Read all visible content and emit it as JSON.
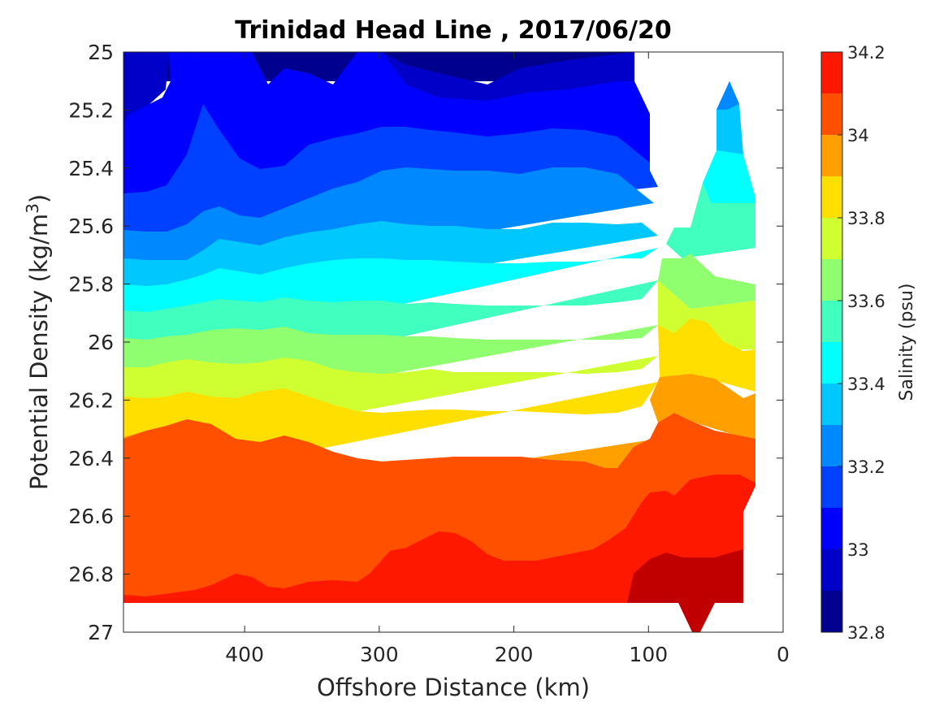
{
  "chart_data": {
    "type": "contour",
    "title": "Trinidad Head Line , 2017/06/20",
    "xlabel": "Offshore Distance (km)",
    "ylabel": "Potential Density (kg/m",
    "ylabel_sup": "3",
    "ylabel_end": ")",
    "xlim": [
      490,
      0
    ],
    "ylim": [
      25,
      27
    ],
    "xticks": [
      400,
      300,
      200,
      100,
      0
    ],
    "yticks": [
      25,
      25.2,
      25.4,
      25.6,
      25.8,
      26,
      26.2,
      26.4,
      26.6,
      26.8,
      27
    ],
    "colorbar": {
      "label": "Salinity (psu)",
      "range": [
        32.8,
        34.2
      ],
      "ticks": [
        32.8,
        33,
        33.2,
        33.4,
        33.6,
        33.8,
        34,
        34.2
      ],
      "levels": [
        32.8,
        32.9,
        33.0,
        33.1,
        33.2,
        33.3,
        33.4,
        33.5,
        33.6,
        33.7,
        33.8,
        33.9,
        34.0,
        34.1,
        34.2
      ],
      "colors": [
        "#00008f",
        "#0000c8",
        "#0000ff",
        "#0040ff",
        "#0088ff",
        "#00c8ff",
        "#00ffff",
        "#40ffbf",
        "#8fff70",
        "#cfff30",
        "#ffdf00",
        "#ffa000",
        "#ff5000",
        "#ff1800",
        "#c00000"
      ]
    },
    "isohalines": [
      {
        "salinity": 32.9,
        "x": [
          490,
          480,
          470,
          440,
          400,
          330,
          280,
          240,
          200,
          160,
          120,
          110
        ],
        "y": [
          25.06,
          25.04,
          25.02,
          25.01,
          25.0,
          25.01,
          25.0,
          25.01,
          25.02,
          25.01,
          25.0,
          25.0
        ]
      },
      {
        "salinity": 33.0,
        "x": [
          490,
          480,
          460,
          440,
          410,
          380,
          360,
          340,
          320,
          300,
          280,
          250,
          220,
          200,
          180,
          160,
          140,
          120,
          110
        ],
        "y": [
          25.32,
          25.22,
          25.16,
          25.12,
          25.06,
          25.05,
          25.1,
          25.12,
          25.16,
          25.13,
          25.11,
          25.15,
          25.17,
          25.16,
          25.14,
          25.13,
          25.16,
          25.2,
          25.2
        ]
      },
      {
        "salinity": 33.1,
        "x": [
          490,
          470,
          450,
          430,
          410,
          380,
          350,
          320,
          290,
          260,
          230,
          210,
          180,
          150,
          130,
          110
        ],
        "y": [
          25.48,
          25.47,
          25.38,
          25.18,
          25.32,
          25.4,
          25.39,
          25.29,
          25.25,
          25.26,
          25.29,
          25.3,
          25.27,
          25.29,
          25.36,
          25.37
        ]
      },
      {
        "salinity": 33.2,
        "x": [
          490,
          470,
          450,
          430,
          410,
          390,
          370,
          340,
          310,
          280,
          250,
          220,
          200,
          170,
          140,
          120,
          100
        ],
        "y": [
          25.58,
          25.59,
          25.57,
          25.53,
          25.52,
          25.56,
          25.54,
          25.49,
          25.45,
          25.42,
          25.43,
          25.44,
          25.45,
          25.42,
          25.42,
          25.45,
          25.5
        ]
      },
      {
        "salinity": 33.3,
        "x": [
          490,
          470,
          450,
          430,
          410,
          390,
          370,
          350,
          320,
          290,
          260,
          230,
          200,
          170,
          140,
          110,
          100
        ],
        "y": [
          25.7,
          25.71,
          25.71,
          25.67,
          25.63,
          25.64,
          25.66,
          25.62,
          25.6,
          25.57,
          25.58,
          25.59,
          25.59,
          25.57,
          25.56,
          25.56,
          25.55
        ]
      },
      {
        "salinity": 33.4,
        "x": [
          490,
          470,
          450,
          430,
          410,
          390,
          370,
          350,
          320,
          290,
          260,
          230,
          200,
          170,
          140,
          110,
          100
        ],
        "y": [
          25.81,
          25.81,
          25.79,
          25.75,
          25.73,
          25.76,
          25.74,
          25.71,
          25.69,
          25.68,
          25.69,
          25.7,
          25.7,
          25.68,
          25.68,
          25.68,
          25.66
        ]
      },
      {
        "salinity": 33.5,
        "x": [
          490,
          470,
          450,
          430,
          400,
          370,
          340,
          310,
          280,
          250,
          220,
          190,
          160,
          130,
          110,
          100
        ],
        "y": [
          25.91,
          25.9,
          25.88,
          25.85,
          25.83,
          25.83,
          25.82,
          25.8,
          25.81,
          25.81,
          25.83,
          25.81,
          25.8,
          25.79,
          25.78,
          25.76
        ]
      },
      {
        "salinity": 33.6,
        "x": [
          490,
          470,
          450,
          430,
          400,
          370,
          340,
          310,
          280,
          250,
          220,
          190,
          160,
          130,
          110,
          100
        ],
        "y": [
          25.99,
          25.98,
          25.96,
          25.95,
          25.94,
          25.94,
          25.92,
          25.92,
          25.93,
          25.93,
          25.93,
          25.92,
          25.91,
          25.9,
          25.89,
          25.88
        ]
      },
      {
        "salinity": 33.7,
        "x": [
          490,
          470,
          450,
          430,
          400,
          370,
          340,
          310,
          280,
          250,
          220,
          190,
          160,
          130,
          110,
          100
        ],
        "y": [
          26.09,
          26.08,
          26.06,
          26.06,
          26.06,
          26.04,
          26.06,
          26.08,
          26.08,
          26.06,
          26.07,
          26.07,
          26.07,
          26.05,
          26.03,
          25.99
        ]
      },
      {
        "salinity": 33.8,
        "x": [
          490,
          470,
          450,
          430,
          400,
          370,
          340,
          310,
          280,
          250,
          220,
          190,
          160,
          130,
          110,
          100
        ],
        "y": [
          26.19,
          26.19,
          26.18,
          26.16,
          26.17,
          26.14,
          26.18,
          26.2,
          26.21,
          26.2,
          26.19,
          26.2,
          26.21,
          26.2,
          26.17,
          26.11
        ]
      },
      {
        "salinity": 33.9,
        "x": [
          490,
          470,
          450,
          430,
          410,
          390,
          370,
          340,
          310,
          280,
          250,
          220,
          190,
          160,
          140,
          130,
          110,
          100
        ],
        "y": [
          26.32,
          26.3,
          26.28,
          26.27,
          26.31,
          26.34,
          26.32,
          26.4,
          26.42,
          26.41,
          26.4,
          26.39,
          26.4,
          26.41,
          26.43,
          26.44,
          26.41,
          26.36
        ]
      },
      {
        "salinity": 34.0,
        "x": [
          490,
          470,
          450,
          420,
          400,
          380,
          360,
          340,
          320,
          300,
          280,
          260,
          240,
          220,
          200,
          180,
          160,
          140,
          120,
          100
        ],
        "y": [
          26.89,
          26.88,
          26.87,
          26.85,
          26.82,
          26.83,
          26.85,
          26.82,
          26.81,
          26.79,
          26.74,
          26.69,
          26.66,
          26.68,
          26.71,
          26.72,
          26.7,
          26.66,
          26.62,
          26.52
        ]
      },
      {
        "salinity": 34.1,
        "x": [
          120,
          100,
          80,
          60,
          40,
          30
        ],
        "y": [
          26.79,
          26.76,
          26.73,
          26.74,
          26.73,
          26.72
        ]
      }
    ],
    "near_shore_section": {
      "x": [
        100,
        90,
        80,
        70,
        60,
        50,
        40,
        30,
        20
      ],
      "surface_salinity_levels": [
        33.2,
        33.3,
        33.4,
        33.5,
        33.6,
        33.5,
        33.3,
        33.2,
        33.3
      ]
    }
  }
}
